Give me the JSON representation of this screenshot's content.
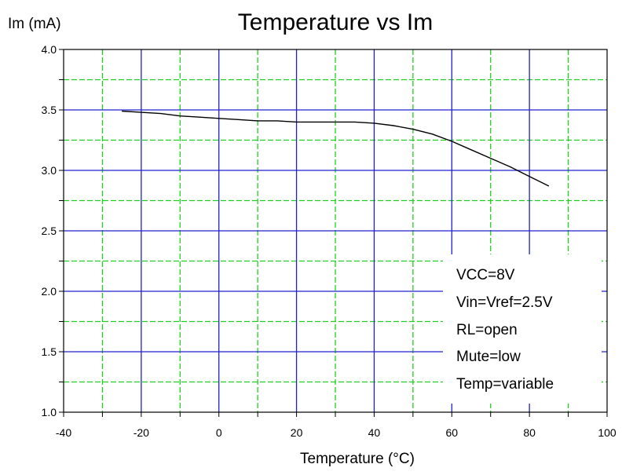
{
  "chart_data": {
    "type": "line",
    "title": "Temperature vs Im",
    "xlabel": "Temperature (°C)",
    "ylabel": "Im (mA)",
    "xlim": [
      -40,
      100
    ],
    "ylim": [
      1.0,
      4.0
    ],
    "x_ticks": [
      -40,
      -20,
      0,
      20,
      40,
      60,
      80,
      100
    ],
    "x_tick_labels": [
      "-40",
      "-20",
      "0",
      "20",
      "40",
      "60",
      "80",
      "100"
    ],
    "y_ticks": [
      1.0,
      1.5,
      2.0,
      2.5,
      3.0,
      3.5,
      4.0
    ],
    "y_tick_labels": [
      "1.0",
      "1.5",
      "2.0",
      "2.5",
      "3.0",
      "3.5",
      "4.0"
    ],
    "x_minor_grid": [
      -30,
      -10,
      10,
      30,
      50,
      70,
      90
    ],
    "y_minor_grid": [
      1.25,
      1.75,
      2.25,
      2.75,
      3.25,
      3.75
    ],
    "grid": true,
    "legend": "none",
    "colors": {
      "major_grid": "#2020d0",
      "minor_grid": "#20d020",
      "line": "#000000"
    },
    "series": [
      {
        "x": [
          -25,
          -20,
          -15,
          -10,
          -5,
          0,
          5,
          10,
          15,
          20,
          25,
          30,
          35,
          40,
          45,
          50,
          55,
          60,
          65,
          70,
          75,
          80,
          85
        ],
        "y": [
          3.49,
          3.48,
          3.47,
          3.45,
          3.44,
          3.43,
          3.42,
          3.41,
          3.41,
          3.4,
          3.4,
          3.4,
          3.4,
          3.39,
          3.37,
          3.34,
          3.3,
          3.24,
          3.17,
          3.1,
          3.03,
          2.95,
          2.87
        ]
      }
    ],
    "annotation": [
      "VCC=8V",
      "Vin=Vref=2.5V",
      "RL=open",
      "Mute=low",
      "Temp=variable"
    ]
  }
}
